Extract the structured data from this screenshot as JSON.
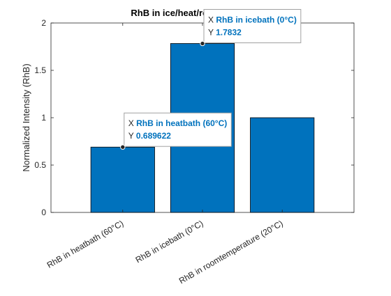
{
  "colors": {
    "bar": "#0072bd",
    "tooltip_value": "#0072bd",
    "axis": "#262626"
  },
  "chart_data": {
    "type": "bar",
    "title": "RhB in ice/heat/roomtemperature",
    "xlabel": "",
    "ylabel": "Normalized Intensity (RhB)",
    "categories": [
      "RhB in heatbath (60°C)",
      "RhB in icebath (0°C)",
      "RhB in roomtemperature (20°C)"
    ],
    "values": [
      0.689622,
      1.7832,
      1.0
    ],
    "ylim": [
      0,
      2
    ],
    "yticks": [
      0,
      0.5,
      1,
      1.5,
      2
    ],
    "ytick_labels": [
      "0",
      "0.5",
      "1",
      "1.5",
      "2"
    ],
    "grid": false,
    "datatips": [
      {
        "x_key": "X",
        "x_value": "RhB in heatbath (60°C)",
        "y_key": "Y",
        "y_value": "0.689622",
        "bar_index": 0
      },
      {
        "x_key": "X",
        "x_value": "RhB in icebath (0°C)",
        "y_key": "Y",
        "y_value": "1.7832",
        "bar_index": 1
      }
    ]
  }
}
